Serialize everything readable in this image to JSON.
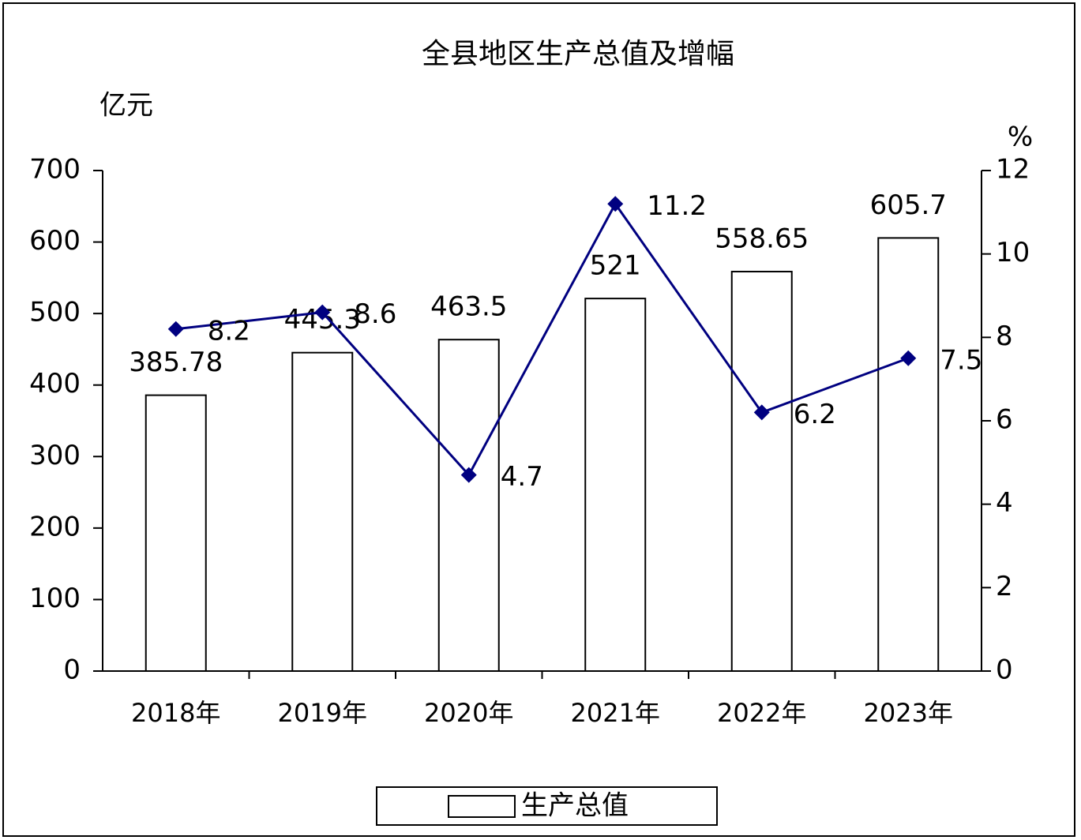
{
  "chart_data": {
    "type": "bar",
    "title": "全县地区生产总值及增幅",
    "y_label": "亿元",
    "y2_label": "%",
    "categories": [
      "2018年",
      "2019年",
      "2020年",
      "2021年",
      "2022年",
      "2023年"
    ],
    "series": [
      {
        "name": "生产总值",
        "type": "bar",
        "color": "#ffffff",
        "values": [
          385.78,
          445.3,
          463.5,
          521,
          558.65,
          605.7
        ]
      },
      {
        "type": "line",
        "axis": "y2",
        "color": "#000080",
        "values": [
          8.2,
          8.6,
          4.7,
          11.2,
          6.2,
          7.5
        ]
      }
    ],
    "ylim": [
      0,
      700
    ],
    "yticks": [
      0,
      100,
      200,
      300,
      400,
      500,
      600,
      700
    ],
    "y2lim": [
      0,
      12
    ],
    "y2ticks": [
      0,
      2,
      4,
      6,
      8,
      10,
      12
    ],
    "legend": "bottom"
  }
}
